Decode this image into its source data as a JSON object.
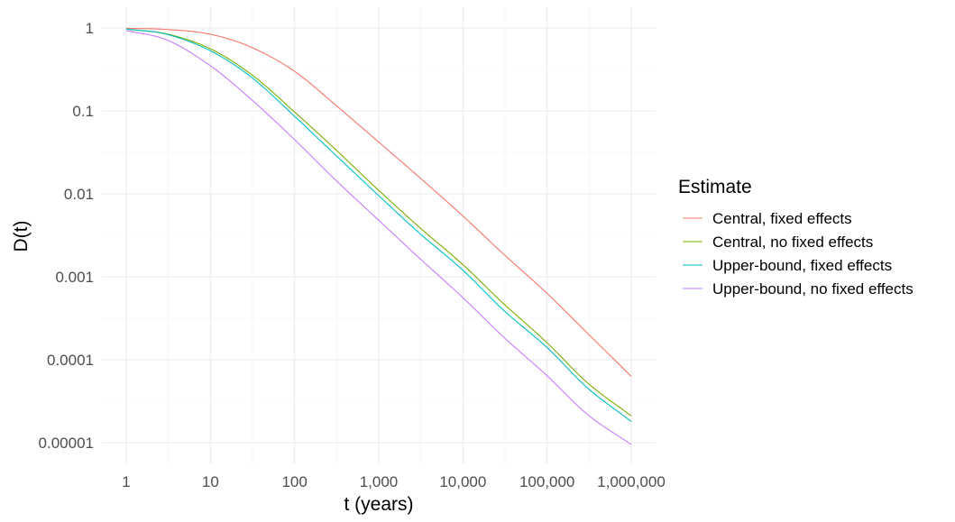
{
  "chart_data": {
    "type": "line",
    "title": "",
    "xlabel": "t (years)",
    "ylabel": "D(t)",
    "x_scale": "log10",
    "y_scale": "log10",
    "xlim": [
      1,
      1000000
    ],
    "ylim": [
      1e-05,
      1
    ],
    "x_ticks": [
      {
        "value": 1,
        "label": "1"
      },
      {
        "value": 10,
        "label": "10"
      },
      {
        "value": 100,
        "label": "100"
      },
      {
        "value": 1000,
        "label": "1,000"
      },
      {
        "value": 10000,
        "label": "10,000"
      },
      {
        "value": 100000,
        "label": "100,000"
      },
      {
        "value": 1000000,
        "label": "1,000,000"
      }
    ],
    "y_ticks": [
      {
        "value": 1,
        "label": "1"
      },
      {
        "value": 0.1,
        "label": "0.1"
      },
      {
        "value": 0.01,
        "label": "0.01"
      },
      {
        "value": 0.001,
        "label": "0.001"
      },
      {
        "value": 0.0001,
        "label": "0.0001"
      },
      {
        "value": 1e-05,
        "label": "0.00001"
      }
    ],
    "grid": true,
    "legend": {
      "title": "Estimate",
      "position": "right"
    },
    "series": [
      {
        "name": "Central, fixed effects",
        "color": "#F8766D",
        "x": [
          1,
          3,
          10,
          30,
          100,
          300,
          1000,
          3000,
          10000,
          30000,
          100000,
          300000,
          1000000
        ],
        "values": [
          0.99,
          0.96,
          0.84,
          0.59,
          0.3,
          0.12,
          0.042,
          0.016,
          0.0054,
          0.0019,
          0.00063,
          0.00021,
          6.3e-05
        ]
      },
      {
        "name": "Central, no fixed effects",
        "color": "#7CAE00",
        "x": [
          1,
          3,
          10,
          30,
          100,
          300,
          1000,
          3000,
          10000,
          30000,
          100000,
          300000,
          1000000
        ],
        "values": [
          0.97,
          0.85,
          0.56,
          0.28,
          0.097,
          0.035,
          0.011,
          0.004,
          0.0014,
          0.00048,
          0.00016,
          5.3e-05,
          2.1e-05
        ]
      },
      {
        "name": "Upper-bound, fixed effects",
        "color": "#00BFC4",
        "x": [
          1,
          3,
          10,
          30,
          100,
          300,
          1000,
          3000,
          10000,
          30000,
          100000,
          300000,
          1000000
        ],
        "values": [
          0.97,
          0.84,
          0.53,
          0.26,
          0.086,
          0.03,
          0.0095,
          0.0034,
          0.0012,
          0.0004,
          0.00014,
          4.6e-05,
          1.8e-05
        ]
      },
      {
        "name": "Upper-bound, no fixed effects",
        "color": "#C77CFF",
        "x": [
          1,
          3,
          10,
          30,
          100,
          300,
          1000,
          3000,
          10000,
          30000,
          100000,
          300000,
          1000000
        ],
        "values": [
          0.93,
          0.72,
          0.35,
          0.14,
          0.045,
          0.015,
          0.0048,
          0.0017,
          0.00056,
          0.00019,
          6.4e-05,
          2.2e-05,
          9.5e-06
        ]
      }
    ]
  }
}
